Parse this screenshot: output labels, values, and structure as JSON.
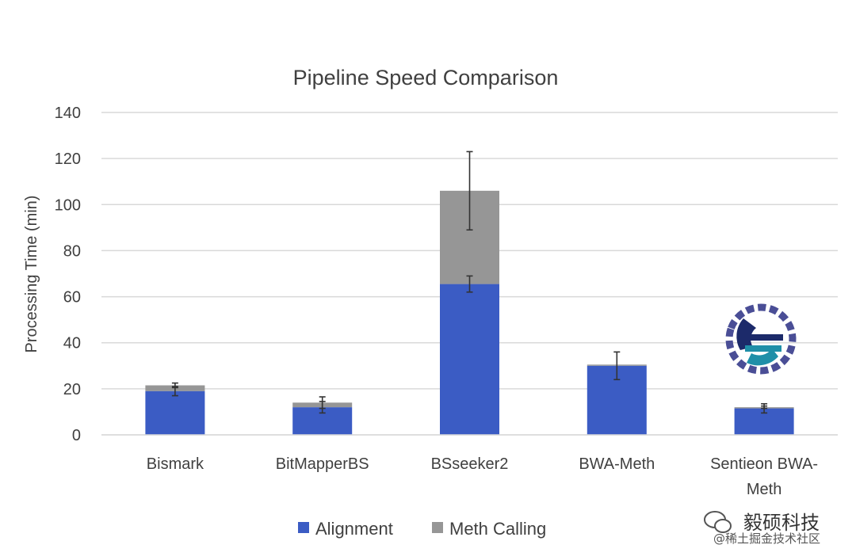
{
  "chart_data": {
    "type": "bar",
    "stacked": true,
    "title": "Pipeline Speed Comparison",
    "xlabel": "",
    "ylabel": "Processing Time (min)",
    "ylim": [
      0,
      140
    ],
    "yticks": [
      0,
      20,
      40,
      60,
      80,
      100,
      120,
      140
    ],
    "grid": true,
    "legend_position": "bottom",
    "categories": [
      "Bismark",
      "BitMapperBS",
      "BSseeker2",
      "BWA-Meth",
      "Sentieon BWA-Meth"
    ],
    "category_labels": [
      [
        "Bismark"
      ],
      [
        "BitMapperBS"
      ],
      [
        "BSseeker2"
      ],
      [
        "BWA-Meth"
      ],
      [
        "Sentieon BWA-",
        "Meth"
      ]
    ],
    "series": [
      {
        "name": "Alignment",
        "color": "#3b5cc4",
        "values": [
          19,
          12,
          65.5,
          30,
          11.5
        ],
        "error": [
          2,
          2.5,
          3.5,
          6,
          2
        ]
      },
      {
        "name": "Meth Calling",
        "color": "#969696",
        "values": [
          2.5,
          2,
          40.5,
          0.5,
          0.5
        ],
        "error": [
          1,
          2.5,
          17,
          0,
          0.5
        ]
      }
    ]
  },
  "watermark": {
    "logo_icon": "sentieon-logo-icon",
    "brand": "毅硕科技",
    "sub": "@稀土掘金技术社区",
    "wechat_icon": "wechat-icon"
  }
}
